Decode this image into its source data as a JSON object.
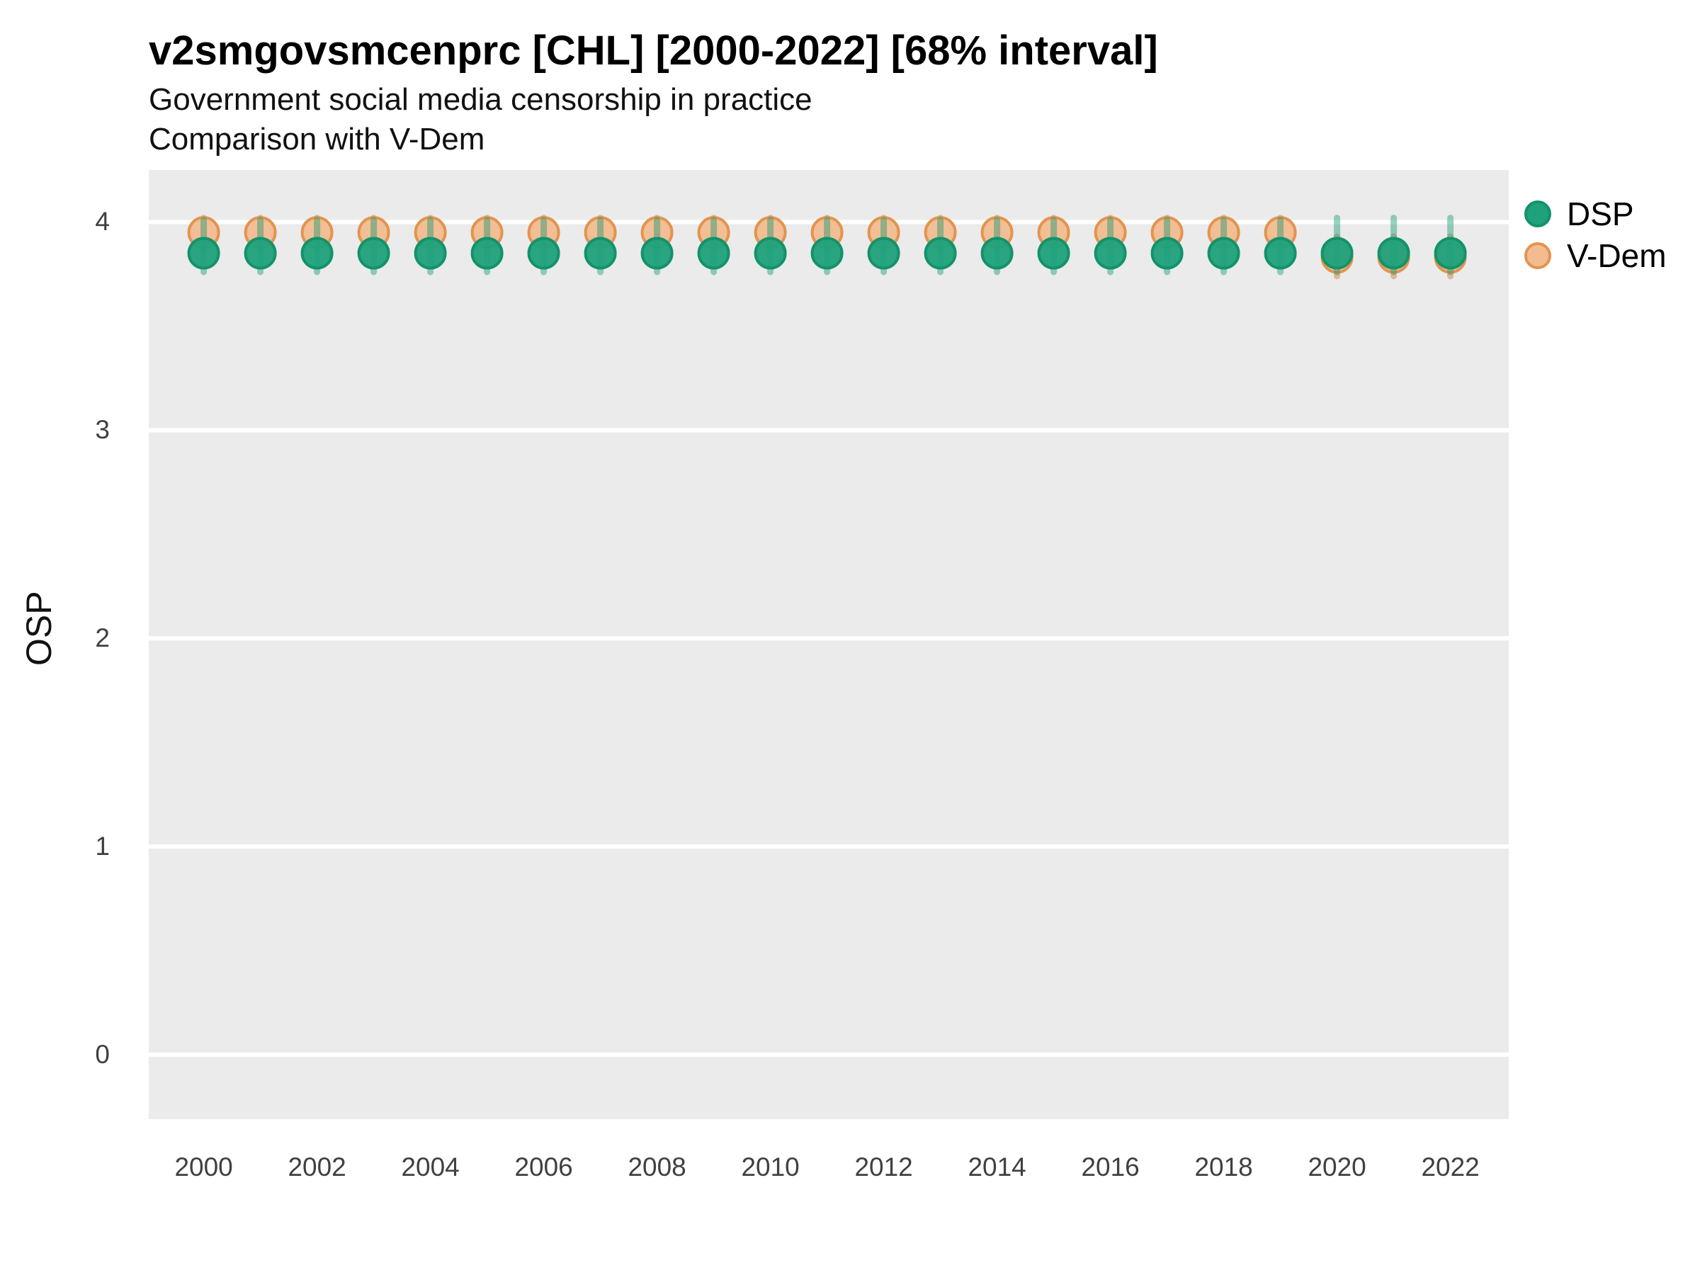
{
  "header": {
    "title": "v2smgovsmcenprc [CHL] [2000-2022] [68% interval]",
    "subtitle_line1": "Government social media censorship in practice",
    "subtitle_line2": "Comparison with V-Dem"
  },
  "axes": {
    "y_title": "OSP",
    "y_tick_labels": [
      "0",
      "1",
      "2",
      "3",
      "4"
    ],
    "x_tick_labels": [
      "2000",
      "2002",
      "2004",
      "2006",
      "2008",
      "2010",
      "2012",
      "2014",
      "2016",
      "2018",
      "2020",
      "2022"
    ]
  },
  "legend": {
    "items": [
      {
        "label": "DSP",
        "fill": "#1FA17B",
        "stroke": "#13926B"
      },
      {
        "label": "V-Dem",
        "fill": "#F2BC90",
        "stroke": "#E2944F"
      }
    ]
  },
  "colors": {
    "panel_background": "#EBEBEB",
    "gridline": "#FFFFFF",
    "title_text": "#000000",
    "tick_text": "#404040"
  },
  "chart_data": {
    "type": "scatter",
    "title": "v2smgovsmcenprc [CHL] [2000-2022] [68% interval]",
    "subtitle": [
      "Government social media censorship in practice",
      "Comparison with V-Dem"
    ],
    "xlabel": "",
    "ylabel": "OSP",
    "interval": "68%",
    "country": "CHL",
    "x_range": [
      1999.03,
      2023.03
    ],
    "y_range": [
      -0.31,
      4.25
    ],
    "y_gridlines": [
      0,
      1,
      2,
      3,
      4
    ],
    "x_tick_years": [
      2000,
      2002,
      2004,
      2006,
      2008,
      2010,
      2012,
      2014,
      2016,
      2018,
      2020,
      2022
    ],
    "grid": "horizontal-major-only",
    "legend_position": "right-top",
    "series": [
      {
        "name": "DSP",
        "dot_fill": "#1FA17B",
        "dot_stroke": "#13926B",
        "bar_color": "rgba(27,158,119,0.45)",
        "points": [
          {
            "year": 2000,
            "value": 3.85,
            "lo": 3.76,
            "hi": 4.01
          },
          {
            "year": 2001,
            "value": 3.85,
            "lo": 3.76,
            "hi": 4.01
          },
          {
            "year": 2002,
            "value": 3.85,
            "lo": 3.76,
            "hi": 4.01
          },
          {
            "year": 2003,
            "value": 3.85,
            "lo": 3.76,
            "hi": 4.01
          },
          {
            "year": 2004,
            "value": 3.85,
            "lo": 3.76,
            "hi": 4.01
          },
          {
            "year": 2005,
            "value": 3.85,
            "lo": 3.76,
            "hi": 4.01
          },
          {
            "year": 2006,
            "value": 3.85,
            "lo": 3.76,
            "hi": 4.01
          },
          {
            "year": 2007,
            "value": 3.85,
            "lo": 3.76,
            "hi": 4.01
          },
          {
            "year": 2008,
            "value": 3.85,
            "lo": 3.76,
            "hi": 4.01
          },
          {
            "year": 2009,
            "value": 3.85,
            "lo": 3.76,
            "hi": 4.01
          },
          {
            "year": 2010,
            "value": 3.85,
            "lo": 3.76,
            "hi": 4.01
          },
          {
            "year": 2011,
            "value": 3.85,
            "lo": 3.76,
            "hi": 4.01
          },
          {
            "year": 2012,
            "value": 3.85,
            "lo": 3.76,
            "hi": 4.01
          },
          {
            "year": 2013,
            "value": 3.85,
            "lo": 3.76,
            "hi": 4.01
          },
          {
            "year": 2014,
            "value": 3.85,
            "lo": 3.76,
            "hi": 4.01
          },
          {
            "year": 2015,
            "value": 3.85,
            "lo": 3.76,
            "hi": 4.01
          },
          {
            "year": 2016,
            "value": 3.85,
            "lo": 3.76,
            "hi": 4.01
          },
          {
            "year": 2017,
            "value": 3.85,
            "lo": 3.76,
            "hi": 4.01
          },
          {
            "year": 2018,
            "value": 3.85,
            "lo": 3.76,
            "hi": 4.01
          },
          {
            "year": 2019,
            "value": 3.85,
            "lo": 3.76,
            "hi": 4.01
          },
          {
            "year": 2020,
            "value": 3.85,
            "lo": 3.76,
            "hi": 4.02
          },
          {
            "year": 2021,
            "value": 3.85,
            "lo": 3.76,
            "hi": 4.02
          },
          {
            "year": 2022,
            "value": 3.85,
            "lo": 3.76,
            "hi": 4.02
          }
        ]
      },
      {
        "name": "V-Dem",
        "dot_fill": "#F2BC90",
        "dot_stroke": "#E2944F",
        "bar_color": "rgba(217,95,2,0.38)",
        "points": [
          {
            "year": 2000,
            "value": 3.95,
            "lo": 3.88,
            "hi": 4.02
          },
          {
            "year": 2001,
            "value": 3.95,
            "lo": 3.88,
            "hi": 4.02
          },
          {
            "year": 2002,
            "value": 3.95,
            "lo": 3.88,
            "hi": 4.02
          },
          {
            "year": 2003,
            "value": 3.95,
            "lo": 3.88,
            "hi": 4.02
          },
          {
            "year": 2004,
            "value": 3.95,
            "lo": 3.88,
            "hi": 4.02
          },
          {
            "year": 2005,
            "value": 3.95,
            "lo": 3.88,
            "hi": 4.02
          },
          {
            "year": 2006,
            "value": 3.95,
            "lo": 3.88,
            "hi": 4.02
          },
          {
            "year": 2007,
            "value": 3.95,
            "lo": 3.88,
            "hi": 4.02
          },
          {
            "year": 2008,
            "value": 3.95,
            "lo": 3.88,
            "hi": 4.02
          },
          {
            "year": 2009,
            "value": 3.95,
            "lo": 3.88,
            "hi": 4.02
          },
          {
            "year": 2010,
            "value": 3.95,
            "lo": 3.88,
            "hi": 4.02
          },
          {
            "year": 2011,
            "value": 3.95,
            "lo": 3.88,
            "hi": 4.02
          },
          {
            "year": 2012,
            "value": 3.95,
            "lo": 3.88,
            "hi": 4.02
          },
          {
            "year": 2013,
            "value": 3.95,
            "lo": 3.88,
            "hi": 4.02
          },
          {
            "year": 2014,
            "value": 3.95,
            "lo": 3.88,
            "hi": 4.02
          },
          {
            "year": 2015,
            "value": 3.95,
            "lo": 3.88,
            "hi": 4.02
          },
          {
            "year": 2016,
            "value": 3.95,
            "lo": 3.88,
            "hi": 4.02
          },
          {
            "year": 2017,
            "value": 3.95,
            "lo": 3.88,
            "hi": 4.02
          },
          {
            "year": 2018,
            "value": 3.95,
            "lo": 3.88,
            "hi": 4.02
          },
          {
            "year": 2019,
            "value": 3.95,
            "lo": 3.88,
            "hi": 4.02
          },
          {
            "year": 2020,
            "value": 3.83,
            "lo": 3.74,
            "hi": 3.93
          },
          {
            "year": 2021,
            "value": 3.83,
            "lo": 3.74,
            "hi": 3.93
          },
          {
            "year": 2022,
            "value": 3.83,
            "lo": 3.74,
            "hi": 3.93
          }
        ]
      }
    ]
  }
}
